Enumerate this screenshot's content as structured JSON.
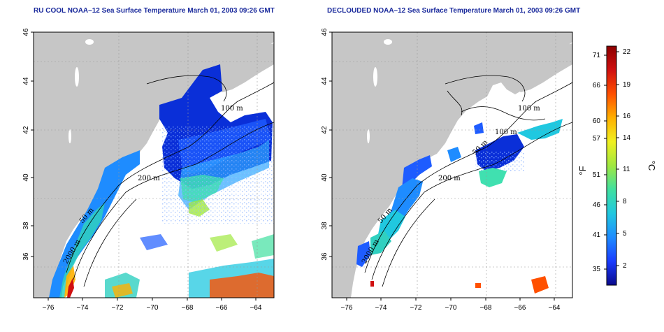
{
  "maps": [
    {
      "title": "RU COOL NOAA–12 Sea Surface Temperature March 01, 2003 09:26 GMT",
      "contour_labels": [
        "100 m",
        "200 m",
        "50 m",
        "2000 m"
      ]
    },
    {
      "title": "DECLOUDED NOAA–12 Sea Surface Temperature March 01, 2003 09:26 GMT",
      "contour_labels": [
        "100 m",
        "100 m",
        "200 m",
        "50 m",
        "50 m",
        "2000 m"
      ]
    }
  ],
  "x_ticks": [
    "−76",
    "−74",
    "−72",
    "−70",
    "−68",
    "−66",
    "−64"
  ],
  "y_ticks": [
    "46",
    "44",
    "42",
    "40",
    "38",
    "36"
  ],
  "colorbar": {
    "fahrenheit_label": "°F",
    "celsius_label": "°C",
    "fahrenheit_ticks": [
      "71",
      "66",
      "60",
      "57",
      "51",
      "46",
      "41",
      "35"
    ],
    "celsius_ticks": [
      "22",
      "19",
      "16",
      "14",
      "11",
      "8",
      "5",
      "2"
    ],
    "colors": [
      "#0a0a8c",
      "#1a3cff",
      "#1e8cff",
      "#20c8e0",
      "#40e0a0",
      "#a0e840",
      "#f0f020",
      "#ffb000",
      "#ff5000",
      "#d01010",
      "#8c0000"
    ]
  },
  "colors": {
    "land": "#c6c6c6",
    "water": "#ffffff",
    "title": "#1a2a9c"
  }
}
